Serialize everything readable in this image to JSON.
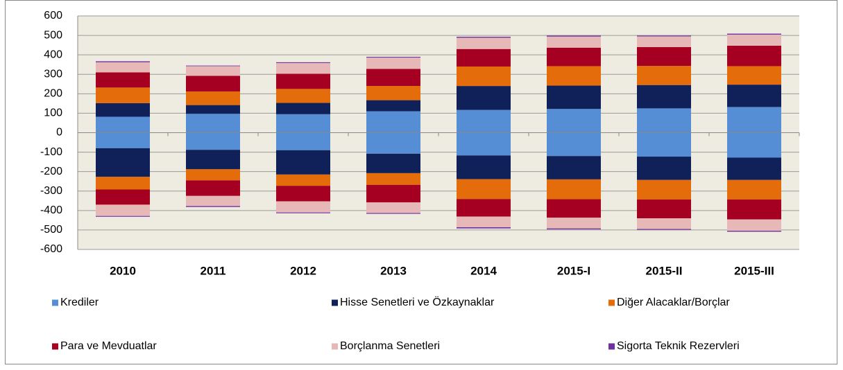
{
  "chart_data": {
    "type": "bar",
    "stacked": true,
    "categories": [
      "2010",
      "2011",
      "2012",
      "2013",
      "2014",
      "2015-I",
      "2015-II",
      "2015-III"
    ],
    "ylim": [
      -600,
      600
    ],
    "yticks": [
      -600,
      -500,
      -400,
      -300,
      -200,
      -100,
      0,
      100,
      200,
      300,
      400,
      500,
      600
    ],
    "grid": true,
    "series": [
      {
        "name": "Krediler",
        "color": "#558ed5",
        "values": [
          82,
          97,
          95,
          110,
          117,
          122,
          125,
          132
        ],
        "negative_values": [
          -80,
          -88,
          -90,
          -108,
          -117,
          -120,
          -123,
          -128
        ]
      },
      {
        "name": "Hisse Senetleri ve Özkaynaklar",
        "color": "#10215a",
        "values": [
          70,
          45,
          58,
          57,
          123,
          120,
          120,
          115
        ],
        "negative_values": [
          -147,
          -100,
          -125,
          -100,
          -122,
          -120,
          -120,
          -115
        ]
      },
      {
        "name": "Diğer Alacaklar/Borçlar",
        "color": "#e46c0a",
        "values": [
          80,
          70,
          72,
          73,
          100,
          100,
          98,
          95
        ],
        "negative_values": [
          -65,
          -57,
          -58,
          -60,
          -102,
          -102,
          -100,
          -100
        ]
      },
      {
        "name": "Para ve Mevduatlar",
        "color": "#a50021",
        "values": [
          78,
          80,
          78,
          88,
          90,
          95,
          97,
          105
        ],
        "negative_values": [
          -78,
          -80,
          -80,
          -90,
          -90,
          -95,
          -97,
          -103
        ]
      },
      {
        "name": "Borçlanma Senetleri",
        "color": "#e6b9b8",
        "values": [
          52,
          50,
          55,
          58,
          58,
          57,
          55,
          57
        ],
        "negative_values": [
          -58,
          -52,
          -57,
          -55,
          -55,
          -55,
          -55,
          -58
        ]
      },
      {
        "name": "Sigorta Teknik Rezervleri",
        "color": "#7030a0",
        "values": [
          5,
          3,
          4,
          4,
          5,
          5,
          4,
          5
        ],
        "negative_values": [
          -4,
          -5,
          -4,
          -4,
          -6,
          -5,
          -4,
          -5
        ]
      }
    ]
  }
}
